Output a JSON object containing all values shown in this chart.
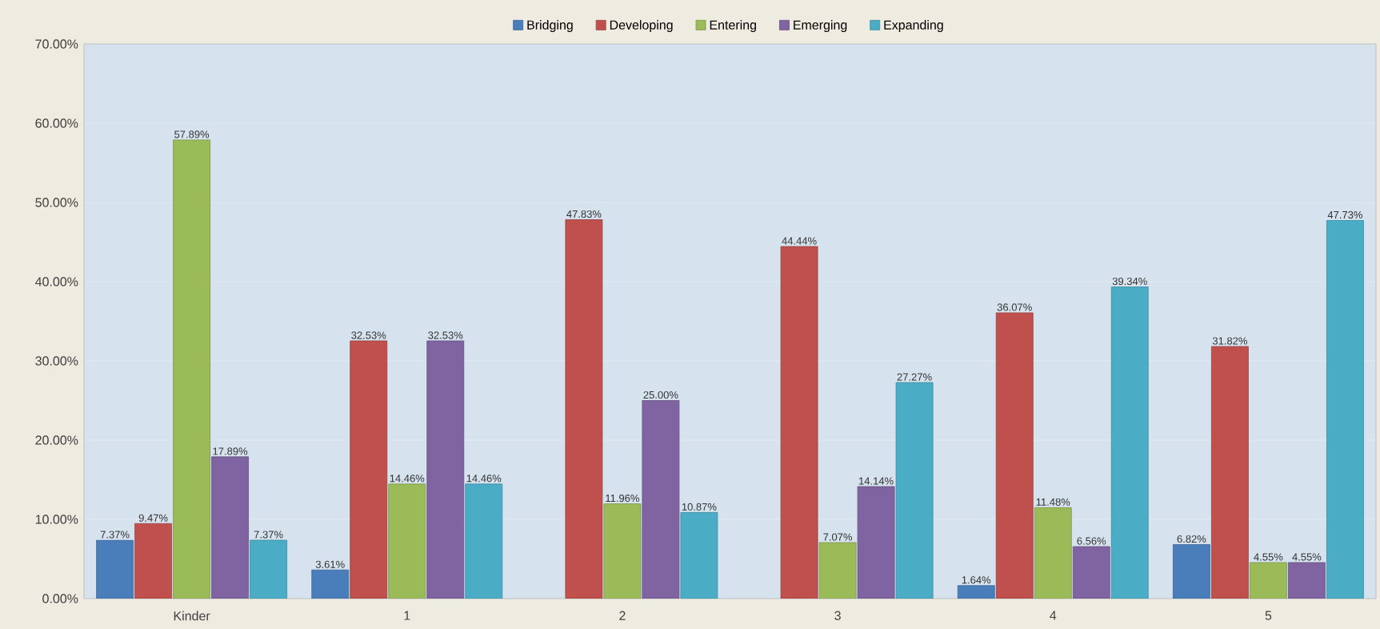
{
  "chart_data": {
    "type": "bar",
    "categories": [
      "Kinder",
      "1",
      "2",
      "3",
      "4",
      "5"
    ],
    "series": [
      {
        "name": "Bridging",
        "color": "#4a7ebb",
        "values": [
          7.37,
          3.61,
          null,
          null,
          1.64,
          6.82
        ],
        "value_labels": [
          "7.37%",
          "3.61%",
          null,
          null,
          "1.64%",
          "6.82%"
        ]
      },
      {
        "name": "Developing",
        "color": "#c0504d",
        "values": [
          9.47,
          32.53,
          47.83,
          44.44,
          36.07,
          31.82
        ],
        "value_labels": [
          "9.47%",
          "32.53%",
          "47.83%",
          "44.44%",
          "36.07%",
          "31.82%"
        ]
      },
      {
        "name": "Entering",
        "color": "#9bbb59",
        "values": [
          57.89,
          14.46,
          11.96,
          7.07,
          11.48,
          4.55
        ],
        "value_labels": [
          "57.89%",
          "14.46%",
          "11.96%",
          "7.07%",
          "11.48%",
          "4.55%"
        ]
      },
      {
        "name": "Emerging",
        "color": "#8064a2",
        "values": [
          17.89,
          32.53,
          25.0,
          14.14,
          6.56,
          4.55
        ],
        "value_labels": [
          "17.89%",
          "32.53%",
          "25.00%",
          "14.14%",
          "6.56%",
          "4.55%"
        ]
      },
      {
        "name": "Expanding",
        "color": "#4bacc6",
        "values": [
          7.37,
          14.46,
          10.87,
          27.27,
          39.34,
          47.73
        ],
        "value_labels": [
          "7.37%",
          "14.46%",
          "10.87%",
          "27.27%",
          "39.34%",
          "47.73%"
        ]
      }
    ],
    "ylim": [
      0,
      70
    ],
    "yticks": [
      {
        "value": 0,
        "label": "0.00%"
      },
      {
        "value": 10,
        "label": "10.00%"
      },
      {
        "value": 20,
        "label": "20.00%"
      },
      {
        "value": 30,
        "label": "30.00%"
      },
      {
        "value": 40,
        "label": "40.00%"
      },
      {
        "value": 50,
        "label": "50.00%"
      },
      {
        "value": 60,
        "label": "60.00%"
      },
      {
        "value": 70,
        "label": "70.00%"
      }
    ],
    "grid": "y",
    "legend": "top"
  }
}
